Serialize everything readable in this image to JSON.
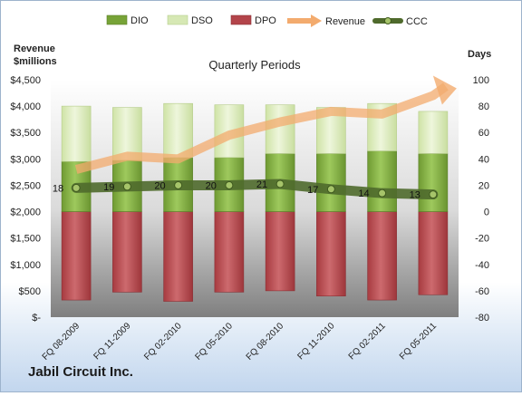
{
  "chart_data": {
    "type": "bar",
    "title": "Quarterly Periods",
    "footer": "Jabil Circuit Inc.",
    "left_axis_label_line1": "Revenue",
    "left_axis_label_line2": "$millions",
    "right_axis_label": "Days",
    "categories": [
      "FQ 08-2009",
      "FQ 11-2009",
      "FQ 02-2010",
      "FQ 05-2010",
      "FQ 08-2010",
      "FQ 11-2010",
      "FQ 02-2011",
      "FQ 05-2011"
    ],
    "left_ticks": [
      "$-",
      "$500",
      "$1,000",
      "$1,500",
      "$2,000",
      "$2,500",
      "$3,000",
      "$3,500",
      "$4,000",
      "$4,500"
    ],
    "right_ticks": [
      "-80",
      "-60",
      "-40",
      "-20",
      "0",
      "20",
      "40",
      "60",
      "80",
      "100"
    ],
    "ylim_days": [
      -80,
      100
    ],
    "ylim_revenue": [
      0,
      4500
    ],
    "legend_position": "top",
    "series": [
      {
        "name": "DIO",
        "axis": "days",
        "color": "#77a337",
        "values": [
          38,
          39,
          41,
          41,
          44,
          44,
          46,
          44
        ]
      },
      {
        "name": "DSO",
        "axis": "days",
        "color": "#d6e8b4",
        "values": [
          42,
          40,
          41,
          40,
          37,
          35,
          36,
          32
        ]
      },
      {
        "name": "DPO",
        "axis": "days",
        "color": "#b3444a",
        "values": [
          -67,
          -61,
          -68,
          -61,
          -60,
          -64,
          -67,
          -63
        ]
      },
      {
        "name": "Revenue",
        "axis": "revenue",
        "color": "#f3ab6e",
        "values": [
          2800,
          3050,
          3000,
          3450,
          3700,
          3900,
          3850,
          4200
        ]
      },
      {
        "name": "CCC",
        "axis": "days",
        "color": "#4f6a2c",
        "values": [
          18,
          19,
          20,
          20,
          21,
          17,
          14,
          13
        ]
      }
    ],
    "ccc_labels": [
      "18",
      "19",
      "20",
      "20",
      "21",
      "17",
      "14",
      "13"
    ],
    "grid": false
  }
}
